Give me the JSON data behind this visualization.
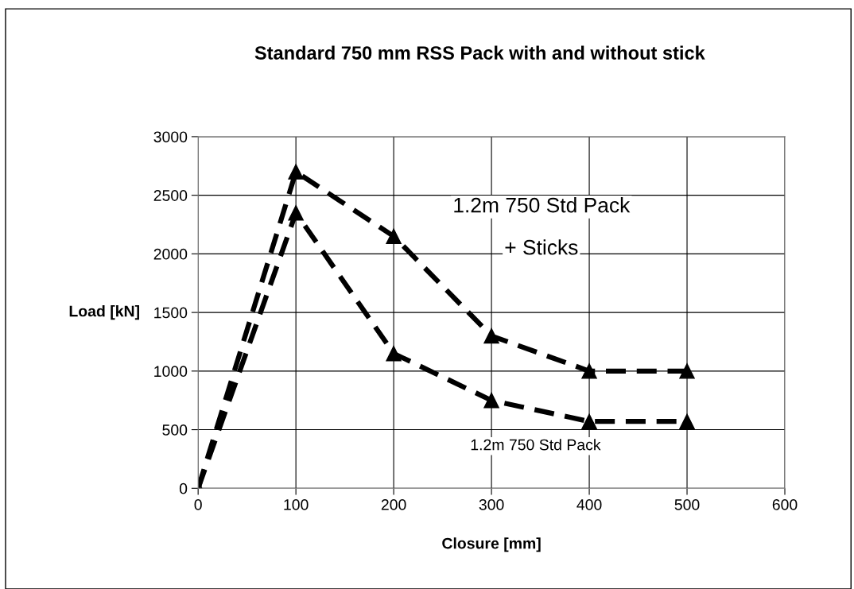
{
  "chart_data": {
    "type": "line",
    "title": "Standard 750 mm RSS Pack with and without stick",
    "xlabel": "Closure [mm]",
    "ylabel": "Load [kN]",
    "x": [
      0,
      100,
      200,
      300,
      400,
      500
    ],
    "series": [
      {
        "color": "#000000",
        "values": [
          0,
          2700,
          2150,
          1300,
          1000,
          1000
        ]
      },
      {
        "color": "#000000",
        "values": [
          0,
          2350,
          1150,
          750,
          570,
          570
        ]
      }
    ],
    "annotations": [
      "1.2m 750 Std Pack",
      "+ Sticks",
      "1.2m 750 Std Pack"
    ],
    "xlim": [
      0,
      600
    ],
    "xticks": [
      0,
      100,
      200,
      300,
      400,
      500,
      600
    ],
    "ylim": [
      0,
      3000
    ],
    "yticks": [
      0,
      500,
      1000,
      1500,
      2000,
      2500,
      3000
    ],
    "grid": true,
    "legend": false,
    "marker": "triangle",
    "line_style": "dashed"
  }
}
